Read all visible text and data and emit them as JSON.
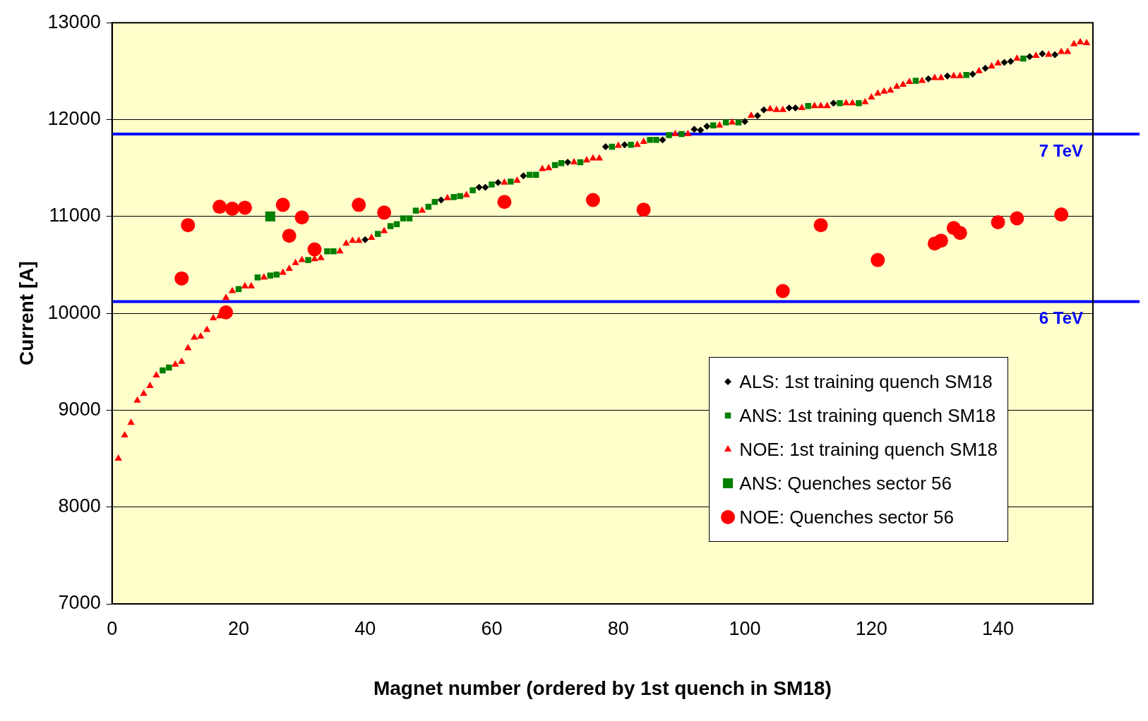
{
  "chart_data": {
    "type": "scatter",
    "xlabel": "Magnet number (ordered by 1st quench in SM18)",
    "ylabel": "Current [A]",
    "xlim": [
      0,
      155
    ],
    "xticks": [
      0,
      20,
      40,
      60,
      80,
      100,
      120,
      140
    ],
    "ylim": [
      7000,
      13000
    ],
    "yticks": [
      7000,
      8000,
      9000,
      10000,
      11000,
      12000,
      13000
    ],
    "grid": "y",
    "legend": "bottom right",
    "ref_lines": [
      {
        "axis": "y",
        "value": 11850,
        "label": "7 TeV",
        "color": "#0000ff"
      },
      {
        "axis": "y",
        "value": 10120,
        "label": "6 TeV",
        "color": "#0000ff"
      }
    ],
    "series": [
      {
        "name": "ALS: 1st training quench SM18",
        "color": "#000000",
        "marker": "diamond",
        "x": [
          40,
          52,
          58,
          59,
          61,
          65,
          72,
          78,
          81,
          87,
          92,
          93,
          94,
          100,
          102,
          103,
          107,
          108,
          114,
          129,
          132,
          136,
          138,
          141,
          142,
          145,
          147,
          149
        ],
        "values": [
          10760,
          11170,
          11300,
          11300,
          11350,
          11420,
          11560,
          11720,
          11740,
          11790,
          11900,
          11890,
          11930,
          11980,
          12040,
          12100,
          12120,
          12120,
          12170,
          12420,
          12450,
          12470,
          12530,
          12590,
          12600,
          12650,
          12680,
          12670
        ]
      },
      {
        "name": "ANS: 1st training quench SM18",
        "color": "#008000",
        "marker": "square",
        "x": [
          8,
          9,
          20,
          23,
          25,
          26,
          31,
          34,
          35,
          42,
          44,
          45,
          46,
          47,
          48,
          50,
          51,
          54,
          55,
          57,
          60,
          63,
          66,
          67,
          70,
          71,
          74,
          79,
          82,
          85,
          86,
          88,
          90,
          95,
          97,
          99,
          110,
          115,
          118,
          127,
          135,
          144
        ],
        "values": [
          9410,
          9440,
          10250,
          10370,
          10390,
          10400,
          10550,
          10640,
          10640,
          10820,
          10900,
          10920,
          10980,
          10980,
          11060,
          11100,
          11150,
          11200,
          11210,
          11270,
          11330,
          11360,
          11430,
          11430,
          11530,
          11550,
          11560,
          11720,
          11740,
          11790,
          11790,
          11840,
          11850,
          11940,
          11970,
          11970,
          12140,
          12170,
          12170,
          12400,
          12460,
          12630
        ]
      },
      {
        "name": "NOE: 1st training quench SM18",
        "color": "#ff0000",
        "marker": "triangle",
        "x": [
          1,
          2,
          3,
          4,
          5,
          6,
          7,
          10,
          11,
          12,
          13,
          14,
          15,
          16,
          17,
          18,
          19,
          21,
          22,
          24,
          27,
          28,
          29,
          30,
          32,
          33,
          36,
          37,
          38,
          39,
          41,
          43,
          49,
          53,
          56,
          62,
          64,
          68,
          69,
          73,
          75,
          76,
          77,
          80,
          83,
          84,
          89,
          91,
          96,
          98,
          101,
          104,
          105,
          106,
          109,
          111,
          112,
          113,
          116,
          117,
          119,
          120,
          121,
          122,
          123,
          124,
          125,
          126,
          128,
          130,
          131,
          133,
          134,
          137,
          139,
          140,
          143,
          146,
          148,
          150,
          151,
          152,
          153,
          154
        ],
        "values": [
          8500,
          8740,
          8870,
          9100,
          9170,
          9250,
          9360,
          9470,
          9500,
          9640,
          9750,
          9760,
          9830,
          9950,
          9970,
          10160,
          10230,
          10280,
          10280,
          10370,
          10420,
          10460,
          10520,
          10550,
          10560,
          10570,
          10640,
          10720,
          10750,
          10750,
          10780,
          10850,
          11060,
          11190,
          11220,
          11350,
          11370,
          11490,
          11500,
          11560,
          11580,
          11600,
          11600,
          11730,
          11740,
          11770,
          11850,
          11850,
          11940,
          11970,
          12040,
          12110,
          12100,
          12100,
          12120,
          12140,
          12140,
          12140,
          12170,
          12170,
          12180,
          12230,
          12270,
          12290,
          12300,
          12340,
          12360,
          12390,
          12400,
          12430,
          12430,
          12450,
          12450,
          12500,
          12550,
          12580,
          12630,
          12660,
          12670,
          12700,
          12700,
          12780,
          12800,
          12790
        ]
      },
      {
        "name": "ANS: Quenches sector 56",
        "color": "#008000",
        "marker": "square",
        "x": [
          25
        ],
        "values": [
          11000
        ]
      },
      {
        "name": "NOE: Quenches sector 56",
        "color": "#ff0000",
        "marker": "circle",
        "x": [
          11,
          12,
          17,
          18,
          19,
          21,
          27,
          28,
          30,
          32,
          39,
          43,
          62,
          76,
          84,
          106,
          112,
          121,
          130,
          131,
          133,
          134,
          140,
          143,
          150
        ],
        "values": [
          10360,
          10910,
          11100,
          10010,
          11080,
          11090,
          11120,
          10800,
          10990,
          10660,
          11120,
          11040,
          11150,
          11170,
          11070,
          10230,
          10910,
          10550,
          10720,
          10750,
          10880,
          10830,
          10940,
          10980,
          11020
        ]
      }
    ]
  }
}
